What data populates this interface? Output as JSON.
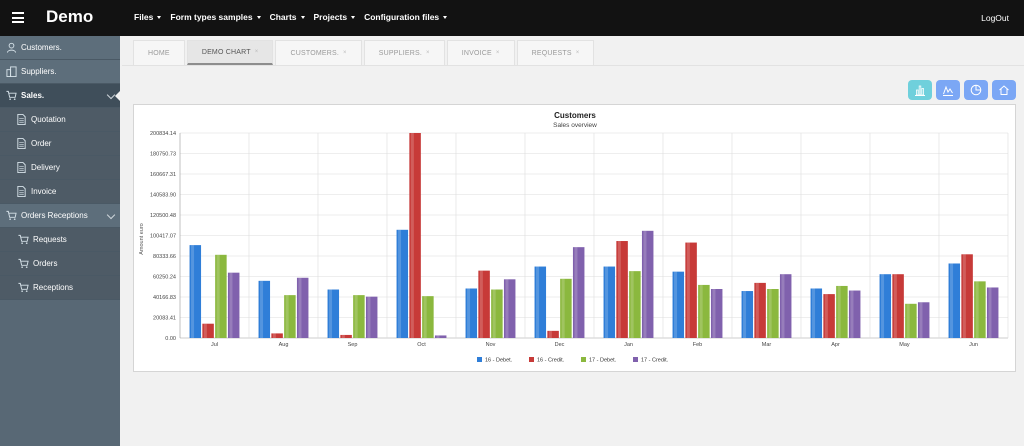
{
  "app": {
    "brand": "Demo",
    "logout": "LogOut"
  },
  "topmenu": [
    {
      "label": "Files"
    },
    {
      "label": "Form types samples"
    },
    {
      "label": "Charts"
    },
    {
      "label": "Projects"
    },
    {
      "label": "Configuration files"
    }
  ],
  "sidebar": {
    "items": [
      {
        "label": "Customers.",
        "icon": "user-icon"
      },
      {
        "label": "Suppliers.",
        "icon": "building-icon"
      },
      {
        "label": "Sales.",
        "icon": "cart-icon"
      },
      {
        "label": "Quotation",
        "icon": "document-icon"
      },
      {
        "label": "Order",
        "icon": "document-icon"
      },
      {
        "label": "Delivery",
        "icon": "document-icon"
      },
      {
        "label": "Invoice",
        "icon": "document-icon"
      },
      {
        "label": "Orders Receptions",
        "icon": "cart-icon"
      },
      {
        "label": "Requests",
        "icon": "cart-icon"
      },
      {
        "label": "Orders",
        "icon": "cart-icon"
      },
      {
        "label": "Receptions",
        "icon": "cart-icon"
      }
    ]
  },
  "tabs": [
    {
      "label": "HOME",
      "closable": false
    },
    {
      "label": "DEMO CHART",
      "closable": true,
      "active": true
    },
    {
      "label": "CUSTOMERS.",
      "closable": true
    },
    {
      "label": "SUPPLIERS.",
      "closable": true
    },
    {
      "label": "INVOICE",
      "closable": true
    },
    {
      "label": "REQUESTS",
      "closable": true
    }
  ],
  "toolbar": [
    {
      "icon": "bar-chart-icon",
      "color": "#6fd0dc"
    },
    {
      "icon": "line-chart-icon",
      "color": "#7ba7f5"
    },
    {
      "icon": "pie-chart-icon",
      "color": "#7ba7f5"
    },
    {
      "icon": "home-icon",
      "color": "#7ba7f5"
    }
  ],
  "chart_data": {
    "type": "bar",
    "title": "Customers",
    "subtitle": "Sales overview",
    "ylabel": "Amount euro",
    "ylim": [
      0,
      200834.14
    ],
    "yticks": [
      "0.00",
      "20083.41",
      "40166.83",
      "60250.24",
      "80333.66",
      "100417.07",
      "120500.48",
      "140583.90",
      "160667.31",
      "180750.73",
      "200834.14"
    ],
    "categories": [
      "Jul",
      "Aug",
      "Sep",
      "Oct",
      "Nov",
      "Dec",
      "Jan",
      "Feb",
      "Mar",
      "Apr",
      "May",
      "Jun"
    ],
    "grid": true,
    "legend_position": "bottom",
    "series": [
      {
        "name": "16 - Debet.",
        "color": "#2f7ed8",
        "values": [
          91000,
          56000,
          47500,
          106000,
          48500,
          70000,
          70000,
          65000,
          46000,
          48500,
          62500,
          73000
        ]
      },
      {
        "name": "16 - Credit.",
        "color": "#c73a38",
        "values": [
          14000,
          4500,
          3000,
          200834,
          66000,
          7000,
          95000,
          93500,
          54000,
          43000,
          62500,
          82000
        ]
      },
      {
        "name": "17 - Debet.",
        "color": "#8bb83e",
        "values": [
          81500,
          42000,
          42000,
          41000,
          47500,
          58000,
          65500,
          52000,
          48000,
          51000,
          33500,
          55500
        ]
      },
      {
        "name": "17 - Credit.",
        "color": "#8061ad",
        "values": [
          64000,
          59000,
          40500,
          2500,
          57500,
          89000,
          105000,
          48000,
          62500,
          46500,
          35000,
          49500
        ]
      }
    ]
  }
}
